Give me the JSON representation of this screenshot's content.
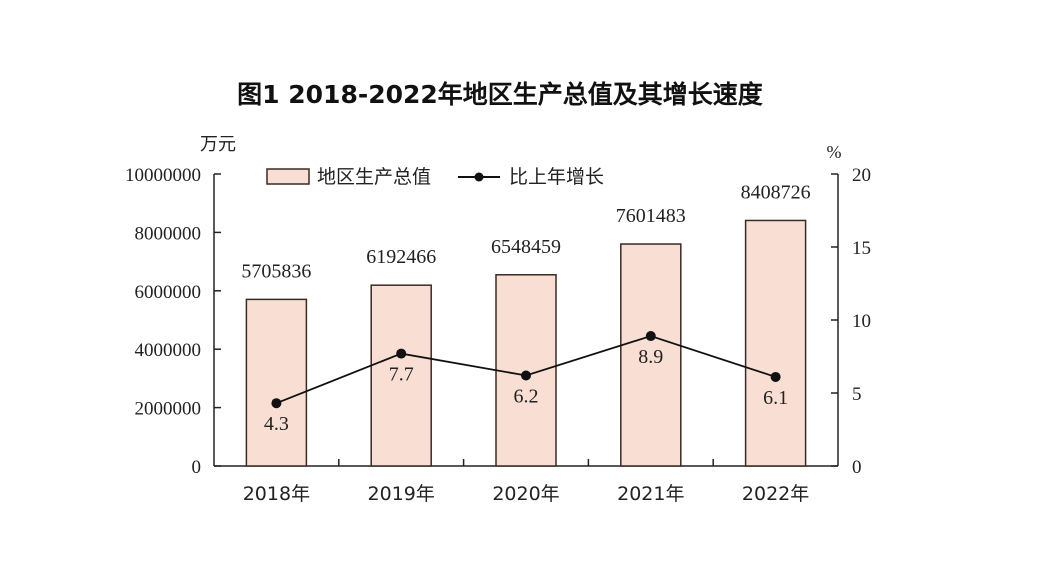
{
  "chart_data": {
    "type": "bar",
    "title": "图1 2018-2022年地区生产总值及其增长速度",
    "categories": [
      "2018年",
      "2019年",
      "2020年",
      "2021年",
      "2022年"
    ],
    "series": [
      {
        "name": "地区生产总值",
        "type": "bar",
        "axis": "left",
        "values": [
          5705836,
          6192466,
          6548459,
          7601483,
          8408726
        ],
        "labels": [
          "5705836",
          "6192466",
          "6548459",
          "7601483",
          "8408726"
        ]
      },
      {
        "name": "比上年增长",
        "type": "line",
        "axis": "right",
        "values": [
          4.3,
          7.7,
          6.2,
          8.9,
          6.1
        ],
        "labels": [
          "4.3",
          "7.7",
          "6.2",
          "8.9",
          "6.1"
        ]
      }
    ],
    "ylabel": "万元",
    "y2label": "%",
    "ylim": [
      0,
      10000000
    ],
    "y2lim": [
      0,
      20
    ],
    "yticks": [
      "0",
      "2000000",
      "4000000",
      "6000000",
      "8000000",
      "10000000"
    ],
    "y2ticks": [
      "0",
      "5",
      "10",
      "15",
      "20"
    ],
    "legend": "top-center",
    "colors": {
      "bar": "#f9dfd3",
      "bar_edge": "#3a2a25",
      "line": "#111111"
    }
  }
}
